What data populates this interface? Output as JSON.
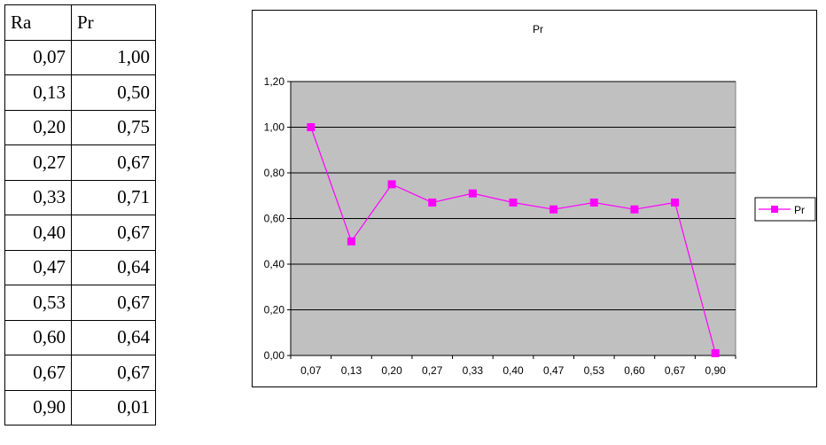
{
  "table": {
    "headers": [
      "Ra",
      "Pr"
    ],
    "rows": [
      [
        "0,07",
        "1,00"
      ],
      [
        "0,13",
        "0,50"
      ],
      [
        "0,20",
        "0,75"
      ],
      [
        "0,27",
        "0,67"
      ],
      [
        "0,33",
        "0,71"
      ],
      [
        "0,40",
        "0,67"
      ],
      [
        "0,47",
        "0,64"
      ],
      [
        "0,53",
        "0,67"
      ],
      [
        "0,60",
        "0,64"
      ],
      [
        "0,67",
        "0,67"
      ],
      [
        "0,90",
        "0,01"
      ]
    ]
  },
  "chart_data": {
    "type": "line",
    "title": "Pr",
    "categories": [
      "0,07",
      "0,13",
      "0,20",
      "0,27",
      "0,33",
      "0,40",
      "0,47",
      "0,53",
      "0,60",
      "0,67",
      "0,90"
    ],
    "series": [
      {
        "name": "Pr",
        "values": [
          1.0,
          0.5,
          0.75,
          0.67,
          0.71,
          0.67,
          0.64,
          0.67,
          0.64,
          0.67,
          0.01
        ]
      }
    ],
    "ylim": [
      0,
      1.2
    ],
    "yticks": [
      0,
      0.2,
      0.4,
      0.6,
      0.8,
      1.0,
      1.2
    ],
    "ytick_labels": [
      "0,00",
      "0,20",
      "0,40",
      "0,60",
      "0,80",
      "1,00",
      "1,20"
    ],
    "grid": true,
    "legend_position": "right",
    "colors": {
      "series": "#ff00ff",
      "plot_background": "#c0c0c0"
    }
  }
}
